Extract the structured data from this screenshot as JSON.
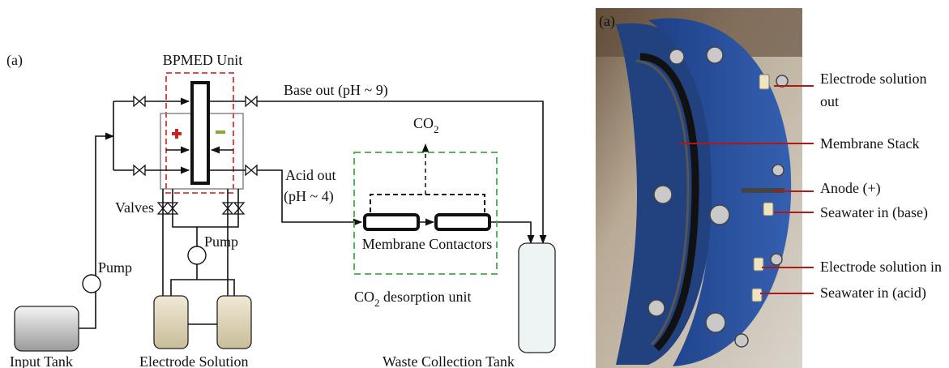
{
  "left_panel": {
    "label": "(a)",
    "bpmed_title": "BPMED Unit",
    "base_out": "Base out (pH ~ 9)",
    "co2": {
      "main": "CO",
      "sub": "2"
    },
    "acid_out": [
      "Acid out",
      "(pH ~ 4)"
    ],
    "valves": "Valves",
    "pump_1": "Pump",
    "pump_2": "Pump",
    "membrane_contactors": "Membrane Contactors",
    "desorption": {
      "main": "CO",
      "sub": "2",
      "rest": " desorption unit"
    },
    "input_tank": "Input Tank",
    "electrode_solution": "Electrode Solution",
    "waste_tank": "Waste Collection Tank"
  },
  "right_panel": {
    "label": "(a)",
    "callouts": [
      {
        "lines": [
          "Electrode solution",
          "out"
        ]
      },
      {
        "lines": [
          "Membrane Stack"
        ]
      },
      {
        "lines": [
          "Anode (+)"
        ]
      },
      {
        "lines": [
          "Seawater in (base)"
        ]
      },
      {
        "lines": [
          "Electrode solution in"
        ]
      },
      {
        "lines": [
          "Seawater in (acid)"
        ]
      }
    ]
  }
}
